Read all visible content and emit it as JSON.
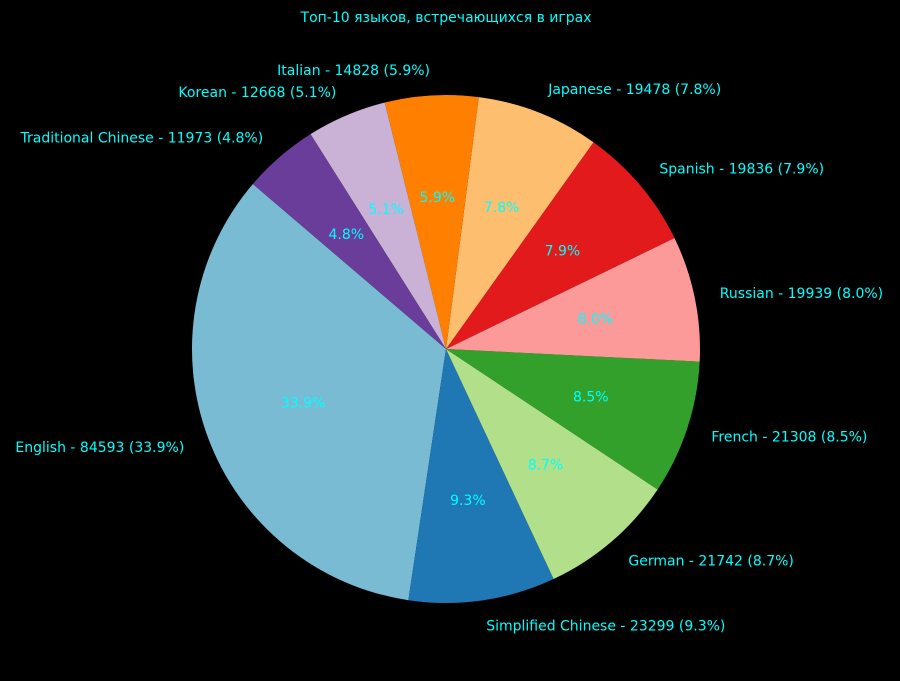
{
  "chart_data": {
    "type": "pie",
    "title": "Топ-10 языков, встречающихся в играх",
    "text_color": "#00FFFF",
    "background": "#000000",
    "slices": [
      {
        "label": "English",
        "value": 84593,
        "percent_label": "33.9%",
        "outer_label": "English - 84593 (33.9%)",
        "color": "#7ABBD4"
      },
      {
        "label": "Simplified Chinese",
        "value": 23299,
        "percent_label": "9.3%",
        "outer_label": "Simplified Chinese - 23299 (9.3%)",
        "color": "#1F77B4"
      },
      {
        "label": "German",
        "value": 21742,
        "percent_label": "8.7%",
        "outer_label": "German - 21742 (8.7%)",
        "color": "#B2DF8A"
      },
      {
        "label": "French",
        "value": 21308,
        "percent_label": "8.5%",
        "outer_label": "French - 21308 (8.5%)",
        "color": "#33A02C"
      },
      {
        "label": "Russian",
        "value": 19939,
        "percent_label": "8.0%",
        "outer_label": "Russian - 19939 (8.0%)",
        "color": "#FB9A99"
      },
      {
        "label": "Spanish",
        "value": 19836,
        "percent_label": "7.9%",
        "outer_label": "Spanish - 19836 (7.9%)",
        "color": "#E31A1C"
      },
      {
        "label": "Japanese",
        "value": 19478,
        "percent_label": "7.8%",
        "outer_label": "Japanese - 19478 (7.8%)",
        "color": "#FDBF6F"
      },
      {
        "label": "Italian",
        "value": 14828,
        "percent_label": "5.9%",
        "outer_label": "Italian - 14828 (5.9%)",
        "color": "#FF7F00"
      },
      {
        "label": "Korean",
        "value": 12668,
        "percent_label": "5.1%",
        "outer_label": "Korean - 12668 (5.1%)",
        "color": "#CAB2D6"
      },
      {
        "label": "Traditional Chinese",
        "value": 11973,
        "percent_label": "4.8%",
        "outer_label": "Traditional Chinese - 11973 (4.8%)",
        "color": "#6A3D9A"
      }
    ]
  }
}
